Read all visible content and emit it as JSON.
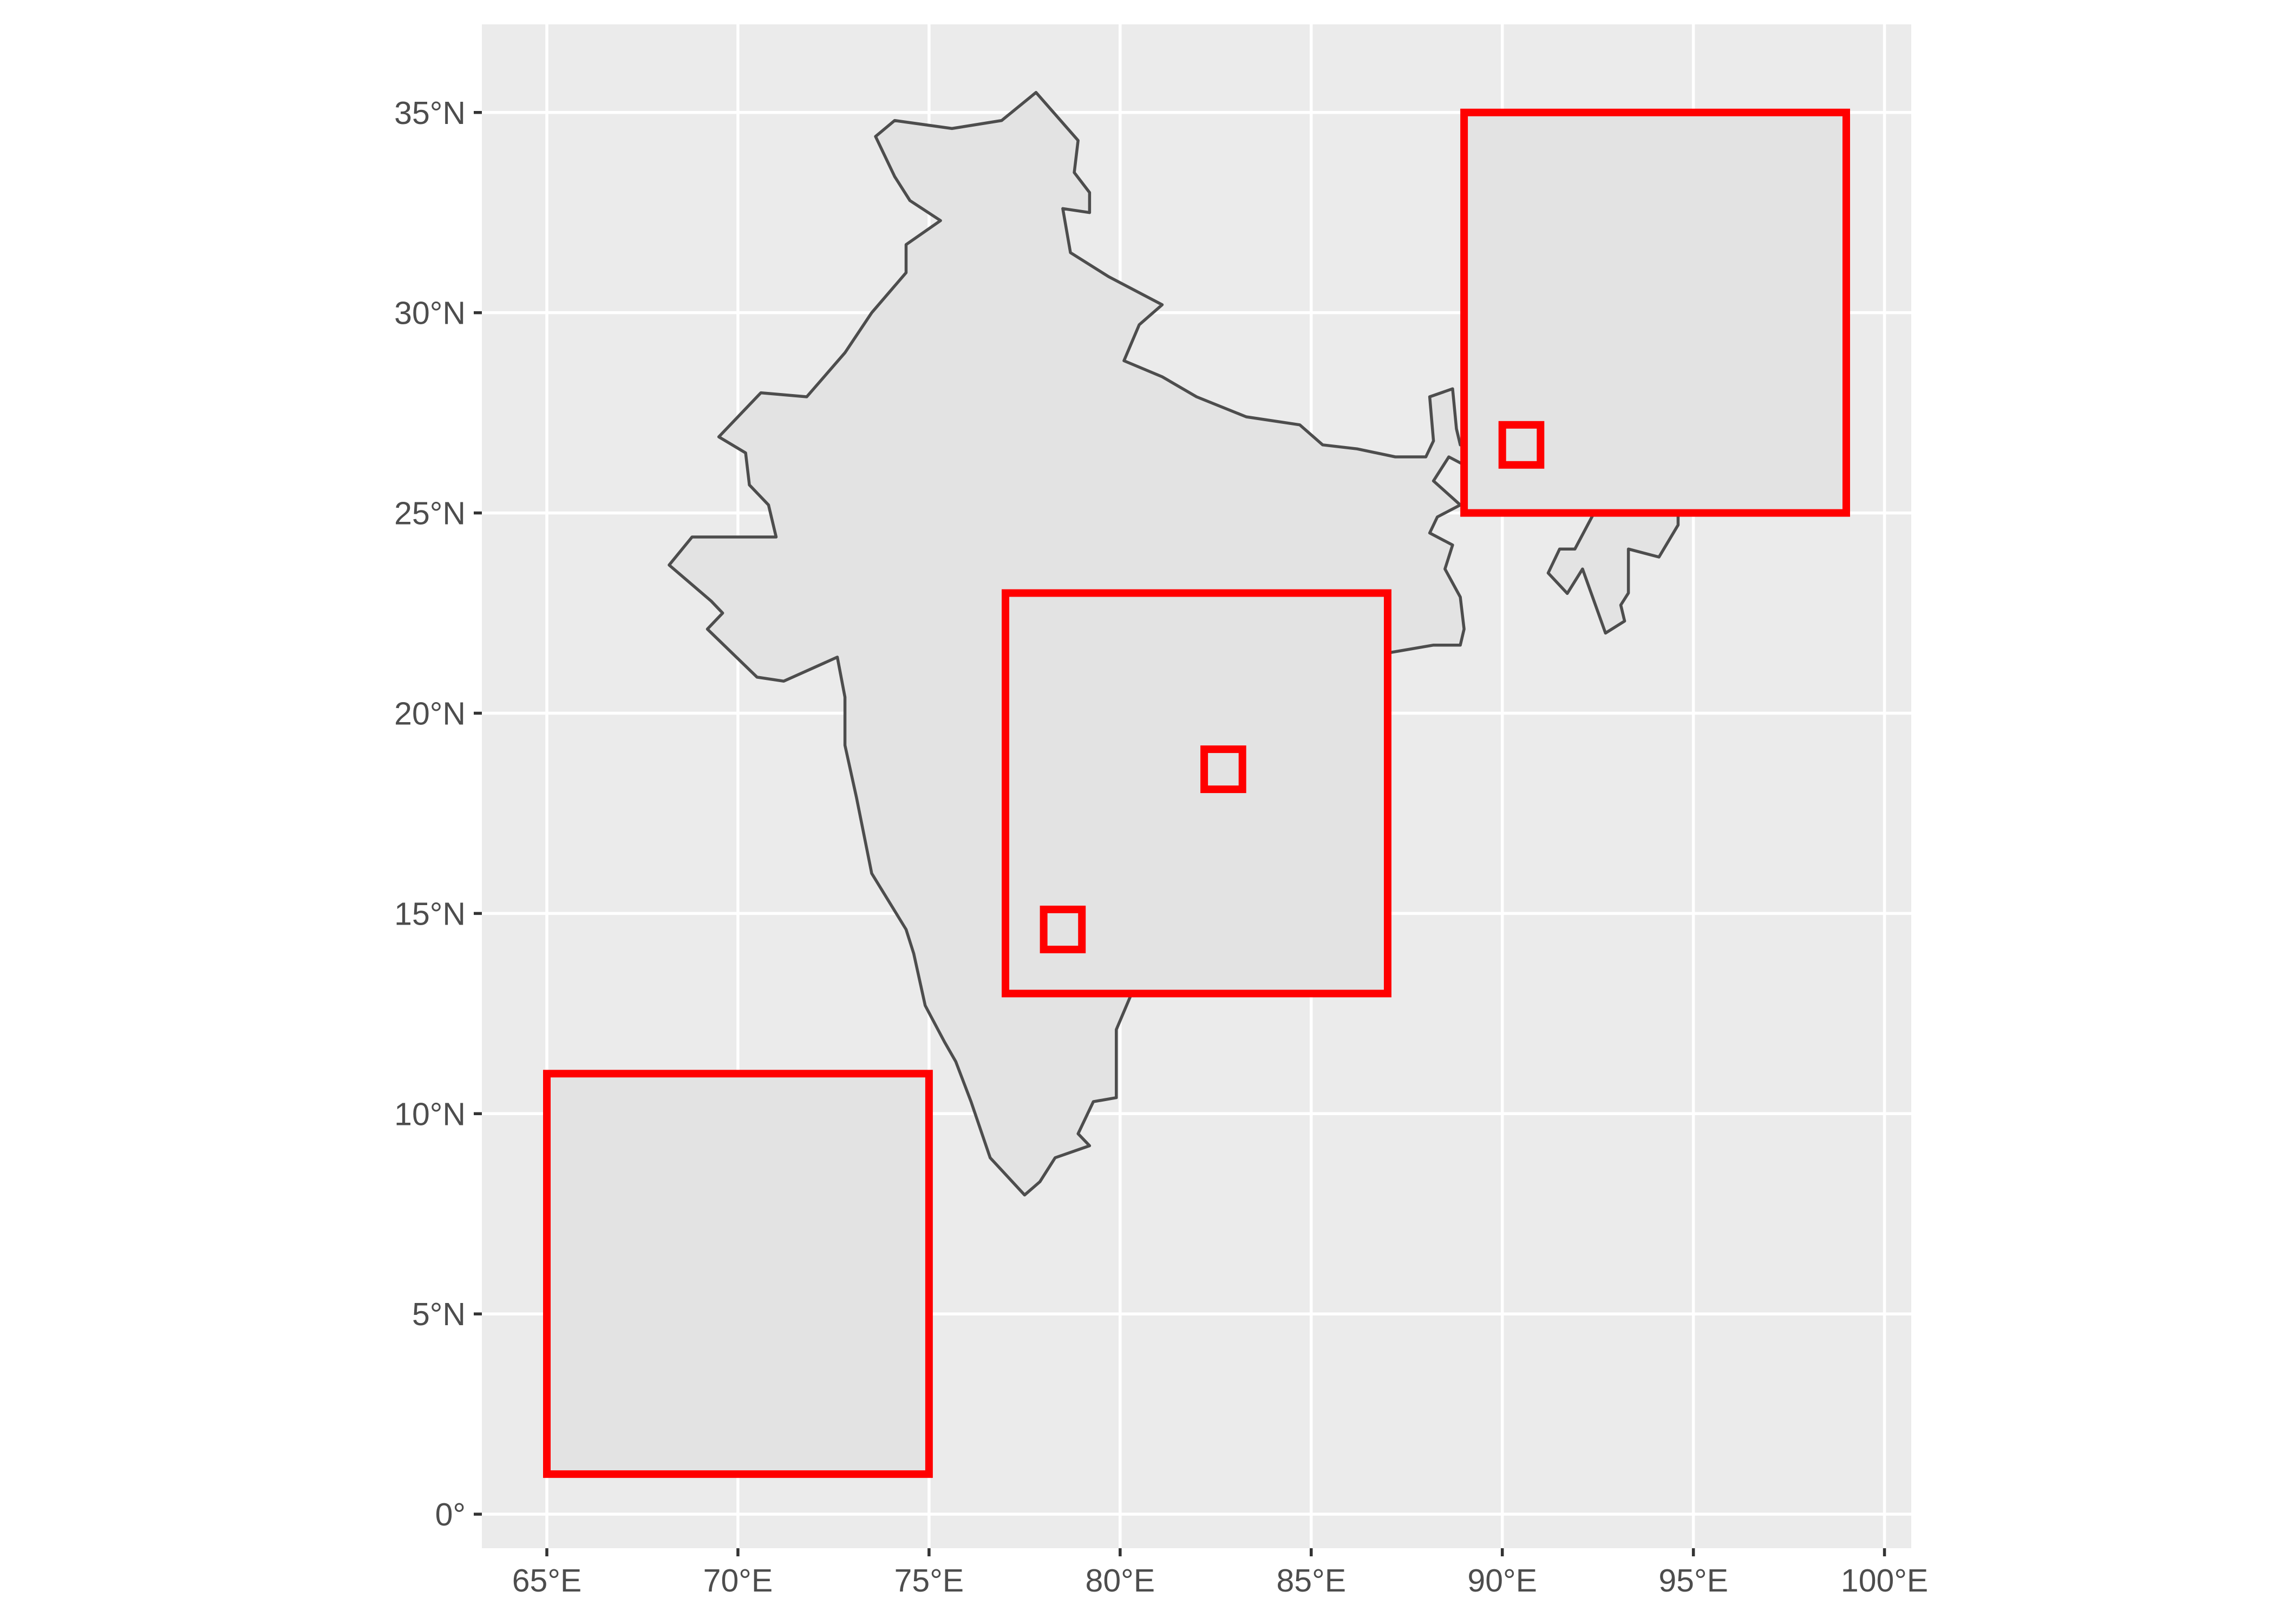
{
  "chart_data": {
    "type": "map",
    "title": "",
    "xlabel": "",
    "ylabel": "",
    "xlim": [
      63.3,
      100.7
    ],
    "ylim": [
      -0.85,
      37.2
    ],
    "grid": true,
    "colors": {
      "panel_background": "#ebebeb",
      "gridline": "#ffffff",
      "land_fill": "#e3e3e3",
      "land_outline": "#4d4d4d",
      "box_outline": "#ff0000",
      "box_fill": "#e3e3e3",
      "tick_label": "#4d4d4d"
    },
    "x_ticks": [
      {
        "value": 65,
        "label": "65°E"
      },
      {
        "value": 70,
        "label": "70°E"
      },
      {
        "value": 75,
        "label": "75°E"
      },
      {
        "value": 80,
        "label": "80°E"
      },
      {
        "value": 85,
        "label": "85°E"
      },
      {
        "value": 90,
        "label": "90°E"
      },
      {
        "value": 95,
        "label": "95°E"
      },
      {
        "value": 100,
        "label": "100°E"
      }
    ],
    "y_ticks": [
      {
        "value": 0,
        "label": "0°"
      },
      {
        "value": 5,
        "label": "5°N"
      },
      {
        "value": 10,
        "label": "10°N"
      },
      {
        "value": 15,
        "label": "15°N"
      },
      {
        "value": 20,
        "label": "20°N"
      },
      {
        "value": 25,
        "label": "25°N"
      },
      {
        "value": 30,
        "label": "30°N"
      },
      {
        "value": 35,
        "label": "35°N"
      }
    ],
    "land_outline": [
      [
        73.6,
        34.4
      ],
      [
        74.1,
        34.8
      ],
      [
        75.6,
        34.6
      ],
      [
        76.9,
        34.8
      ],
      [
        77.8,
        35.5
      ],
      [
        78.9,
        34.3
      ],
      [
        78.8,
        33.5
      ],
      [
        79.2,
        33.0
      ],
      [
        79.2,
        32.5
      ],
      [
        78.5,
        32.6
      ],
      [
        78.7,
        31.5
      ],
      [
        79.7,
        30.9
      ],
      [
        81.1,
        30.2
      ],
      [
        80.5,
        29.7
      ],
      [
        80.1,
        28.8
      ],
      [
        81.1,
        28.4
      ],
      [
        82.0,
        27.9
      ],
      [
        83.3,
        27.4
      ],
      [
        84.7,
        27.2
      ],
      [
        85.3,
        26.7
      ],
      [
        86.2,
        26.6
      ],
      [
        87.2,
        26.4
      ],
      [
        88.0,
        26.4
      ],
      [
        88.2,
        26.8
      ],
      [
        88.1,
        27.9
      ],
      [
        88.7,
        28.1
      ],
      [
        88.8,
        27.1
      ],
      [
        88.9,
        26.7
      ],
      [
        89.7,
        26.7
      ],
      [
        89.9,
        26.9
      ],
      [
        90.4,
        26.9
      ],
      [
        91.2,
        26.8
      ],
      [
        92.1,
        27.0
      ],
      [
        91.7,
        27.8
      ],
      [
        92.5,
        27.9
      ],
      [
        93.4,
        28.6
      ],
      [
        94.6,
        29.3
      ],
      [
        95.4,
        29.0
      ],
      [
        96.1,
        29.5
      ],
      [
        96.6,
        28.8
      ],
      [
        96.2,
        28.4
      ],
      [
        97.3,
        28.3
      ],
      [
        97.4,
        27.9
      ],
      [
        97.1,
        27.7
      ],
      [
        97.1,
        27.1
      ],
      [
        96.4,
        27.3
      ],
      [
        95.2,
        26.6
      ],
      [
        95.2,
        26.0
      ],
      [
        94.6,
        25.2
      ],
      [
        94.6,
        24.7
      ],
      [
        94.1,
        23.9
      ],
      [
        93.3,
        24.1
      ],
      [
        93.3,
        23.0
      ],
      [
        93.1,
        22.7
      ],
      [
        93.2,
        22.3
      ],
      [
        92.7,
        22.0
      ],
      [
        92.1,
        23.6
      ],
      [
        91.7,
        22.99
      ],
      [
        91.2,
        23.5
      ],
      [
        91.5,
        24.1
      ],
      [
        91.9,
        24.1
      ],
      [
        92.4,
        25.0
      ],
      [
        91.8,
        25.1
      ],
      [
        90.9,
        25.1
      ],
      [
        89.9,
        25.3
      ],
      [
        89.8,
        26.0
      ],
      [
        89.4,
        26.0
      ],
      [
        88.6,
        26.4
      ],
      [
        88.2,
        25.8
      ],
      [
        88.9,
        25.2
      ],
      [
        88.3,
        24.9
      ],
      [
        88.1,
        24.5
      ],
      [
        88.7,
        24.2
      ],
      [
        88.5,
        23.6
      ],
      [
        88.9,
        22.9
      ],
      [
        89.0,
        22.1
      ],
      [
        88.9,
        21.7
      ],
      [
        88.2,
        21.7
      ],
      [
        86.98,
        21.5
      ],
      [
        87.03,
        20.7
      ],
      [
        86.5,
        20.2
      ],
      [
        85.1,
        19.5
      ],
      [
        83.9,
        18.3
      ],
      [
        83.2,
        17.7
      ],
      [
        82.2,
        17.0
      ],
      [
        82.2,
        16.6
      ],
      [
        81.7,
        16.3
      ],
      [
        80.8,
        16.0
      ],
      [
        80.3,
        15.9
      ],
      [
        80.0,
        15.1
      ],
      [
        80.2,
        13.8
      ],
      [
        80.3,
        13.0
      ],
      [
        79.9,
        12.1
      ],
      [
        79.9,
        10.4
      ],
      [
        79.3,
        10.3
      ],
      [
        78.9,
        9.5
      ],
      [
        79.2,
        9.2
      ],
      [
        78.3,
        8.9
      ],
      [
        77.9,
        8.3
      ],
      [
        77.5,
        7.97
      ],
      [
        76.6,
        8.9
      ],
      [
        76.1,
        10.3
      ],
      [
        75.7,
        11.3
      ],
      [
        75.4,
        11.8
      ],
      [
        74.9,
        12.7
      ],
      [
        74.6,
        14.0
      ],
      [
        74.4,
        14.6
      ],
      [
        73.5,
        16.0
      ],
      [
        73.1,
        17.9
      ],
      [
        72.8,
        19.2
      ],
      [
        72.8,
        20.4
      ],
      [
        72.6,
        21.4
      ],
      [
        71.2,
        20.8
      ],
      [
        70.5,
        20.9
      ],
      [
        69.2,
        22.1
      ],
      [
        69.6,
        22.5
      ],
      [
        69.3,
        22.8
      ],
      [
        68.2,
        23.7
      ],
      [
        68.8,
        24.4
      ],
      [
        71.0,
        24.4
      ],
      [
        70.8,
        25.2
      ],
      [
        70.3,
        25.7
      ],
      [
        70.2,
        26.5
      ],
      [
        69.5,
        26.9
      ],
      [
        70.6,
        28.0
      ],
      [
        71.8,
        27.9
      ],
      [
        72.8,
        29.0
      ],
      [
        73.5,
        30.0
      ],
      [
        74.4,
        31.0
      ],
      [
        74.4,
        31.7
      ],
      [
        75.3,
        32.3
      ],
      [
        74.5,
        32.8
      ],
      [
        74.1,
        33.4
      ],
      [
        73.6,
        34.4
      ]
    ],
    "boxes": [
      {
        "lon_min": 65,
        "lon_max": 75,
        "lat_min": 1,
        "lat_max": 11
      },
      {
        "lon_min": 77,
        "lon_max": 87,
        "lat_min": 13,
        "lat_max": 23
      },
      {
        "lon_min": 89,
        "lon_max": 99,
        "lat_min": 25,
        "lat_max": 35
      },
      {
        "lon_min": 82.2,
        "lon_max": 83.2,
        "lat_min": 18.1,
        "lat_max": 19.1
      },
      {
        "lon_min": 78.0,
        "lon_max": 79.0,
        "lat_min": 14.1,
        "lat_max": 15.1
      },
      {
        "lon_min": 90.0,
        "lon_max": 91.0,
        "lat_min": 26.2,
        "lat_max": 27.2
      }
    ]
  }
}
